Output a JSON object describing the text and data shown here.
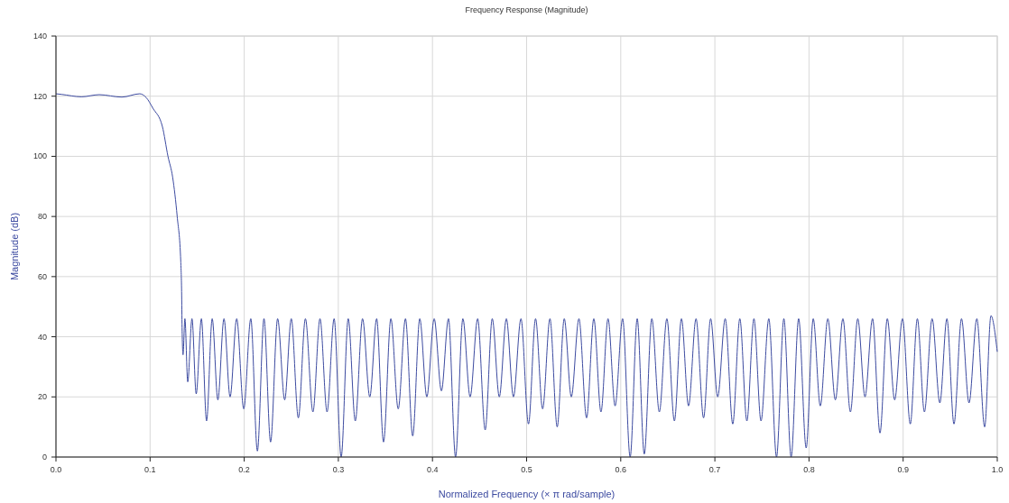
{
  "chart_data": {
    "type": "line",
    "title": "Frequency Response (Magnitude)",
    "xlabel": "Normalized Frequency (× π rad/sample)",
    "ylabel": "Magnitude (dB)",
    "xlim": [
      0,
      1
    ],
    "xticks": [
      {
        "value": 0,
        "label": "0.0"
      },
      {
        "value": 0.1,
        "label": "0.1"
      },
      {
        "value": 0.2,
        "label": "0.2"
      },
      {
        "value": 0.3,
        "label": "0.3"
      },
      {
        "value": 0.4,
        "label": "0.4"
      },
      {
        "value": 0.5,
        "label": "0.5"
      },
      {
        "value": 0.6,
        "label": "0.6"
      },
      {
        "value": 0.7,
        "label": "0.7"
      },
      {
        "value": 0.8,
        "label": "0.8"
      },
      {
        "value": 0.9,
        "label": "0.9"
      },
      {
        "value": 1,
        "label": "1.0"
      }
    ],
    "ylim": [
      0,
      140
    ],
    "yticks": [
      0,
      20,
      40,
      60,
      80,
      100,
      120,
      140
    ],
    "grid": true,
    "series": [
      {
        "color": "#3c4aa0",
        "x": [
          0,
          0.006,
          0.027,
          0.046,
          0.07,
          0.089,
          0.096,
          0.103,
          0.113,
          0.119,
          0.124,
          0.1288,
          0.1326,
          0.1335,
          0.134,
          0.135,
          0.137,
          0.14,
          0.1445,
          0.149,
          0.1545,
          0.16,
          0.166,
          0.172,
          0.1785,
          0.185,
          0.192,
          0.1995,
          0.207,
          0.214,
          0.221,
          0.228,
          0.2355,
          0.243,
          0.25,
          0.2575,
          0.265,
          0.273,
          0.2805,
          0.288,
          0.2955,
          0.303,
          0.3105,
          0.318,
          0.3257,
          0.3334,
          0.3407,
          0.348,
          0.3558,
          0.3636,
          0.3713,
          0.379,
          0.3865,
          0.394,
          0.4018,
          0.4095,
          0.417,
          0.4245,
          0.4323,
          0.44,
          0.448,
          0.456,
          0.4635,
          0.471,
          0.4785,
          0.486,
          0.494,
          0.502,
          0.5095,
          0.517,
          0.5248,
          0.5325,
          0.54,
          0.5475,
          0.5556,
          0.5637,
          0.5714,
          0.579,
          0.5865,
          0.594,
          0.602,
          0.61,
          0.6175,
          0.625,
          0.633,
          0.641,
          0.649,
          0.657,
          0.6645,
          0.672,
          0.68,
          0.688,
          0.6955,
          0.703,
          0.711,
          0.719,
          0.7265,
          0.734,
          0.7415,
          0.749,
          0.7573,
          0.7655,
          0.7733,
          0.781,
          0.789,
          0.797,
          0.8045,
          0.812,
          0.82,
          0.828,
          0.836,
          0.844,
          0.8518,
          0.8595,
          0.8675,
          0.8754,
          0.8832,
          0.891,
          0.8993,
          0.9076,
          0.9151,
          0.9226,
          0.9308,
          0.939,
          0.9465,
          0.954,
          0.962,
          0.97,
          0.9783,
          0.9866,
          0.9933,
          1
        ],
        "values": [
          120.8,
          120.6,
          119.8,
          120.5,
          119.7,
          120.8,
          119.5,
          116,
          110,
          100,
          93,
          80,
          65,
          55,
          43,
          34,
          46,
          25,
          46,
          21,
          46,
          12,
          46,
          19,
          46,
          20,
          46,
          16,
          46,
          2,
          46,
          5,
          46,
          19,
          46,
          13,
          46,
          15,
          46,
          15,
          46,
          0,
          46,
          12,
          46,
          20,
          46,
          5,
          46,
          16,
          46,
          7,
          46,
          20,
          46,
          22,
          46,
          0,
          46,
          20,
          46,
          9,
          46,
          20,
          46,
          20,
          46,
          11,
          46,
          16,
          46,
          10,
          46,
          20,
          46,
          13,
          46,
          15,
          46,
          17,
          46,
          0,
          46,
          1,
          46,
          15,
          46,
          12,
          46,
          17,
          46,
          13,
          46,
          20,
          46,
          11,
          46,
          12,
          46,
          12,
          46,
          0,
          46,
          0,
          46,
          3,
          46,
          17,
          46,
          19,
          46,
          15,
          46,
          20,
          46,
          8,
          46,
          19,
          46,
          11,
          46,
          15,
          46,
          18,
          46,
          11,
          46,
          18,
          46,
          10,
          47,
          35
        ]
      }
    ]
  }
}
